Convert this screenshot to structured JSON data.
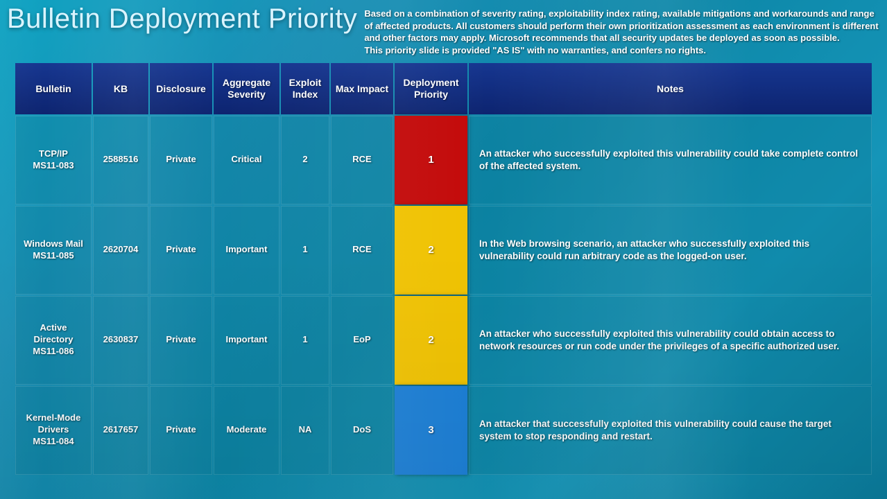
{
  "title": "Bulletin Deployment Priority",
  "description_line1": "Based on a combination of severity rating, exploitability index rating, available mitigations and workarounds and range of affected products. All customers should perform their own prioritization assessment as each environment is different and other factors may apply. Microsoft recommends that all security updates be deployed as soon as possible.",
  "description_line2": "This priority slide is provided \"AS IS\" with no warranties, and confers no rights.",
  "columns": {
    "bulletin": "Bulletin",
    "kb": "KB",
    "disclosure": "Disclosure",
    "severity": "Aggregate Severity",
    "exploit_index": "Exploit Index",
    "max_impact": "Max Impact",
    "deployment_priority": "Deployment Priority",
    "notes": "Notes"
  },
  "priority_colors": {
    "1": "#c30909",
    "2": "#f0c200",
    "3": "#1b7fd6"
  },
  "rows": [
    {
      "bulletin_name": "TCP/IP",
      "bulletin_id": "MS11-083",
      "kb": "2588516",
      "disclosure": "Private",
      "severity": "Critical",
      "exploit_index": "2",
      "max_impact": "RCE",
      "priority": "1",
      "notes": "An attacker who successfully exploited this vulnerability could take complete control of the affected system."
    },
    {
      "bulletin_name": "Windows Mail",
      "bulletin_id": "MS11-085",
      "kb": "2620704",
      "disclosure": "Private",
      "severity": "Important",
      "exploit_index": "1",
      "max_impact": "RCE",
      "priority": "2",
      "notes": "In the Web browsing scenario, an attacker who successfully exploited this vulnerability could run arbitrary code as the  logged-on user."
    },
    {
      "bulletin_name": "Active Directory",
      "bulletin_id": "MS11-086",
      "kb": "2630837",
      "disclosure": "Private",
      "severity": "Important",
      "exploit_index": "1",
      "max_impact": "EoP",
      "priority": "2",
      "notes": "An attacker who successfully exploited this vulnerability could obtain access to network resources or run code under the privileges of a specific authorized user."
    },
    {
      "bulletin_name": "Kernel-Mode Drivers",
      "bulletin_id": "MS11-084",
      "kb": "2617657",
      "disclosure": "Private",
      "severity": "Moderate",
      "exploit_index": "NA",
      "max_impact": "DoS",
      "priority": "3",
      "notes": "An attacker that successfully exploited this vulnerability could cause the target system to stop responding and restart."
    }
  ]
}
